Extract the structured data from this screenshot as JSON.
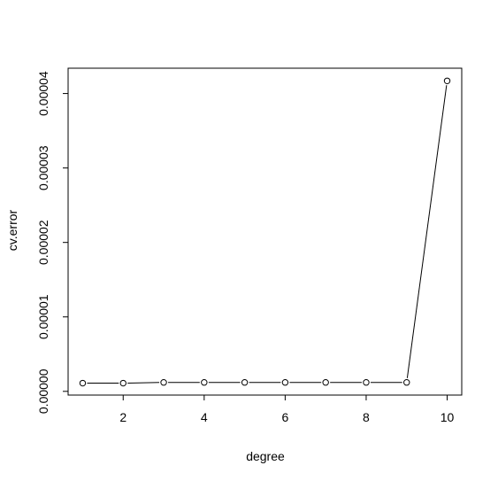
{
  "chart_data": {
    "type": "line",
    "xlabel": "degree",
    "ylabel": "cv.error",
    "x": [
      1,
      2,
      3,
      4,
      5,
      6,
      7,
      8,
      9,
      10
    ],
    "y": [
      1.1e-06,
      1.1e-06,
      1.2e-06,
      1.2e-06,
      1.2e-06,
      1.2e-06,
      1.2e-06,
      1.2e-06,
      1.2e-06,
      4.17e-05
    ],
    "xticks": [
      2,
      4,
      6,
      8,
      10
    ],
    "xtick_labels": [
      "2",
      "4",
      "6",
      "8",
      "10"
    ],
    "yticks": [
      0,
      1e-05,
      2e-05,
      3e-05,
      4e-05
    ],
    "ytick_labels": [
      "0.00000",
      "0.00001",
      "0.00002",
      "0.00003",
      "0.00004"
    ],
    "xlim": [
      0.64,
      10.36
    ],
    "ylim": [
      -5e-07,
      4.34e-05
    ],
    "marker": "open-circle",
    "line_color": "#000000",
    "grid": false
  }
}
